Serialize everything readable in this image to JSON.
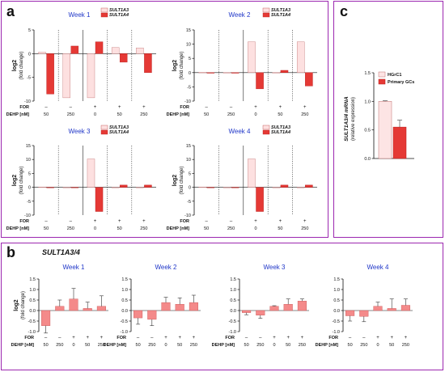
{
  "panels": {
    "a": "a",
    "b": "b",
    "c": "c"
  },
  "colors": {
    "frame": "#9c27b0",
    "s3a3": "#fde0e0",
    "s3a4": "#e53935",
    "b_bar": "#f48a8a",
    "hgrc1": "#fde4e4",
    "gcs": "#e53935",
    "week_title": "#1f36c8"
  },
  "labels": {
    "log2": "log2",
    "fold_change": "(fold change)",
    "for_row": "FOR",
    "dehp_row": "DEHP [nM]",
    "for_marks": [
      "–",
      "–",
      "+",
      "+",
      "+"
    ],
    "dehp_vals": [
      "50",
      "250",
      "0",
      "50",
      "250"
    ],
    "legend_a": [
      "SULT1A3",
      "SULT1A4"
    ]
  },
  "panel_b_title": "SULT1A3/4",
  "chart_data": [
    {
      "type": "bar",
      "panel": "a",
      "title": "Week 1",
      "categories": [
        "50",
        "250",
        "0",
        "50",
        "250"
      ],
      "series": [
        {
          "name": "SULT1A3",
          "values": [
            0.3,
            -9.3,
            -9.3,
            1.3,
            1.2
          ]
        },
        {
          "name": "SULT1A4",
          "values": [
            -8.5,
            1.6,
            2.5,
            -1.8,
            -4.0
          ]
        }
      ],
      "ylim": [
        -10,
        5
      ],
      "yticks": [
        -10,
        -5,
        0,
        5
      ],
      "ylabel": "log2 (fold change)"
    },
    {
      "type": "bar",
      "panel": "a",
      "title": "Week 2",
      "categories": [
        "50",
        "250",
        "0",
        "50",
        "250"
      ],
      "series": [
        {
          "name": "SULT1A3",
          "values": [
            0.1,
            0.0,
            10.8,
            0.0,
            10.8
          ]
        },
        {
          "name": "SULT1A4",
          "values": [
            -0.2,
            -0.2,
            -5.7,
            0.8,
            -4.7
          ]
        }
      ],
      "ylim": [
        -10,
        15
      ],
      "yticks": [
        -10,
        -5,
        0,
        5,
        10,
        15
      ],
      "ylabel": "log2 (fold change)"
    },
    {
      "type": "bar",
      "panel": "a",
      "title": "Week 3",
      "categories": [
        "50",
        "250",
        "0",
        "50",
        "250"
      ],
      "series": [
        {
          "name": "SULT1A3",
          "values": [
            0.1,
            0.0,
            10.2,
            0.0,
            0.0
          ]
        },
        {
          "name": "SULT1A4",
          "values": [
            -0.2,
            -0.2,
            -8.7,
            0.8,
            0.8
          ]
        }
      ],
      "ylim": [
        -10,
        15
      ],
      "yticks": [
        -10,
        -5,
        0,
        5,
        10,
        15
      ],
      "ylabel": "log2 (fold change)"
    },
    {
      "type": "bar",
      "panel": "a",
      "title": "Week 4",
      "categories": [
        "50",
        "250",
        "0",
        "50",
        "250"
      ],
      "series": [
        {
          "name": "SULT1A3",
          "values": [
            0.1,
            0.0,
            10.2,
            0.0,
            0.0
          ]
        },
        {
          "name": "SULT1A4",
          "values": [
            -0.2,
            -0.2,
            -8.7,
            0.8,
            0.8
          ]
        }
      ],
      "ylim": [
        -10,
        15
      ],
      "yticks": [
        -10,
        -5,
        0,
        5,
        10,
        15
      ],
      "ylabel": "log2 (fold change)"
    },
    {
      "type": "bar",
      "panel": "b",
      "title": "Week 1",
      "categories": [
        "50",
        "250",
        "0",
        "50",
        "250"
      ],
      "values": [
        -0.72,
        0.2,
        0.55,
        0.1,
        0.2
      ],
      "errors": [
        0.35,
        0.3,
        0.5,
        0.3,
        0.5
      ],
      "ylim": [
        -1.0,
        1.5
      ],
      "yticks": [
        -1.0,
        -0.5,
        0.0,
        0.5,
        1.0,
        1.5
      ],
      "ylabel": "log2 (fold change)"
    },
    {
      "type": "bar",
      "panel": "b",
      "title": "Week 2",
      "categories": [
        "50",
        "250",
        "0",
        "50",
        "250"
      ],
      "values": [
        -0.35,
        -0.42,
        0.38,
        0.3,
        0.38
      ],
      "errors": [
        0.3,
        0.3,
        0.25,
        0.3,
        0.35
      ],
      "ylim": [
        -1.0,
        1.5
      ],
      "yticks": [
        -1.0,
        -0.5,
        0.0,
        0.5,
        1.0,
        1.5
      ],
      "ylabel": "log2 (fold change)"
    },
    {
      "type": "bar",
      "panel": "b",
      "title": "Week 3",
      "categories": [
        "50",
        "250",
        "0",
        "50",
        "250"
      ],
      "values": [
        -0.1,
        -0.22,
        0.2,
        0.3,
        0.45
      ],
      "errors": [
        0.1,
        0.15,
        0.03,
        0.25,
        0.1
      ],
      "ylim": [
        -1.0,
        1.5
      ],
      "yticks": [
        -1.0,
        -0.5,
        0.0,
        0.5,
        1.0,
        1.5
      ],
      "ylabel": "log2 (fold change)"
    },
    {
      "type": "bar",
      "panel": "b",
      "title": "Week 4",
      "categories": [
        "50",
        "250",
        "0",
        "50",
        "250"
      ],
      "values": [
        -0.25,
        -0.28,
        0.2,
        0.1,
        0.25
      ],
      "errors": [
        0.25,
        0.25,
        0.2,
        0.45,
        0.3
      ],
      "ylim": [
        -1.0,
        1.5
      ],
      "yticks": [
        -1.0,
        -0.5,
        0.0,
        0.5,
        1.0,
        1.5
      ],
      "ylabel": "log2 (fold change)"
    },
    {
      "type": "bar",
      "panel": "c",
      "categories": [
        "HGrC1",
        "Primary GCs"
      ],
      "values": [
        1.0,
        0.55
      ],
      "errors": [
        0.01,
        0.12
      ],
      "ylim": [
        0.0,
        1.5
      ],
      "yticks": [
        0.0,
        0.5,
        1.0,
        1.5
      ],
      "ylabel": "SULT1A3/4 mRNA",
      "ylabel2": "(relative expression)",
      "legend": [
        "HGrC1",
        "Primary GCs"
      ]
    }
  ]
}
